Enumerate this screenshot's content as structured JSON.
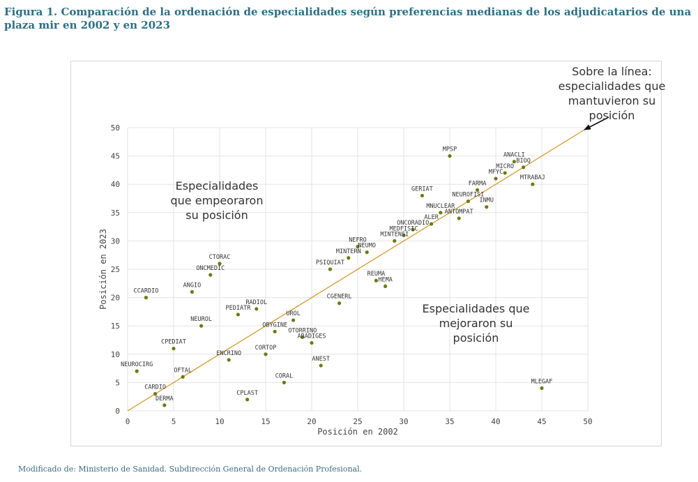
{
  "figure": {
    "title": "Figura 1. Comparación de la ordenación de especialidades según preferencias medianas de los adjudicatarios de una plaza mir en 2002 y en 2023",
    "source": "Modificado de: Ministerio de Sanidad. Subdirección General de Ordenación Profesional."
  },
  "annotations": {
    "line_note": "Sobre la línea: especialidades que mantuvieron su posición",
    "worsened": "Especialidades que empeoraron su posición",
    "improved": "Especialidades que mejoraron su posición"
  },
  "colors": {
    "points": "#6b7a12",
    "line": "#d49a2a",
    "title": "#2e6f86"
  },
  "chart_data": {
    "type": "scatter",
    "xlabel": "Posición en 2002",
    "ylabel": "Posición en 2023",
    "xlim": [
      0,
      50
    ],
    "ylim": [
      0,
      50
    ],
    "xticks": [
      0,
      5,
      10,
      15,
      20,
      25,
      30,
      35,
      40,
      45,
      50
    ],
    "yticks": [
      0,
      5,
      10,
      15,
      20,
      25,
      30,
      35,
      40,
      45,
      50
    ],
    "grid": true,
    "reference_line": {
      "from": [
        0,
        0
      ],
      "to": [
        50,
        50
      ]
    },
    "points": [
      {
        "label": "NEUROCIRG",
        "x": 1,
        "y": 7
      },
      {
        "label": "CCARDIO",
        "x": 2,
        "y": 20
      },
      {
        "label": "CARDIO",
        "x": 3,
        "y": 3
      },
      {
        "label": "DERMA",
        "x": 4,
        "y": 1
      },
      {
        "label": "CPEDIAT",
        "x": 5,
        "y": 11
      },
      {
        "label": "OFTAL",
        "x": 6,
        "y": 6
      },
      {
        "label": "ANGIO",
        "x": 7,
        "y": 21
      },
      {
        "label": "NEUROL",
        "x": 8,
        "y": 15
      },
      {
        "label": "ONCMEDIC",
        "x": 9,
        "y": 24
      },
      {
        "label": "CTORAC",
        "x": 10,
        "y": 26
      },
      {
        "label": "ENCRINO",
        "x": 11,
        "y": 9
      },
      {
        "label": "PEDIATR",
        "x": 12,
        "y": 17
      },
      {
        "label": "CPLAST",
        "x": 13,
        "y": 2
      },
      {
        "label": "RADIOL",
        "x": 14,
        "y": 18
      },
      {
        "label": "CORTOP",
        "x": 15,
        "y": 10
      },
      {
        "label": "OBYGINE",
        "x": 16,
        "y": 14
      },
      {
        "label": "CORAL",
        "x": 17,
        "y": 5
      },
      {
        "label": "UROL",
        "x": 18,
        "y": 16
      },
      {
        "label": "OTORRINO",
        "x": 19,
        "y": 13
      },
      {
        "label": "ARADIGES",
        "x": 20,
        "y": 12
      },
      {
        "label": "ANEST",
        "x": 21,
        "y": 8
      },
      {
        "label": "PSIQUIAT",
        "x": 22,
        "y": 25
      },
      {
        "label": "CGENERL",
        "x": 23,
        "y": 19
      },
      {
        "label": "MINTERN",
        "x": 24,
        "y": 27
      },
      {
        "label": "NEFRO",
        "x": 25,
        "y": 29
      },
      {
        "label": "NEUMO",
        "x": 26,
        "y": 28
      },
      {
        "label": "REUMA",
        "x": 27,
        "y": 23
      },
      {
        "label": "HEMA",
        "x": 28,
        "y": 22
      },
      {
        "label": "MINTENSI",
        "x": 29,
        "y": 30
      },
      {
        "label": "MEDFISIC",
        "x": 30,
        "y": 31
      },
      {
        "label": "ONCORADIO",
        "x": 31,
        "y": 32
      },
      {
        "label": "GERIAT",
        "x": 32,
        "y": 38
      },
      {
        "label": "ALER",
        "x": 33,
        "y": 33
      },
      {
        "label": "MNUCLEAR",
        "x": 34,
        "y": 35
      },
      {
        "label": "MPSP",
        "x": 35,
        "y": 45
      },
      {
        "label": "ANTOMPAT",
        "x": 36,
        "y": 34
      },
      {
        "label": "NEUROFISI",
        "x": 37,
        "y": 37
      },
      {
        "label": "FARMA",
        "x": 38,
        "y": 39
      },
      {
        "label": "INMU",
        "x": 39,
        "y": 36
      },
      {
        "label": "MFYC",
        "x": 40,
        "y": 41
      },
      {
        "label": "MICRO",
        "x": 41,
        "y": 42
      },
      {
        "label": "ANACLI",
        "x": 42,
        "y": 44
      },
      {
        "label": "BIOQ",
        "x": 43,
        "y": 43
      },
      {
        "label": "MTRABAJ",
        "x": 44,
        "y": 40
      },
      {
        "label": "MLEGAF",
        "x": 45,
        "y": 4
      }
    ]
  }
}
